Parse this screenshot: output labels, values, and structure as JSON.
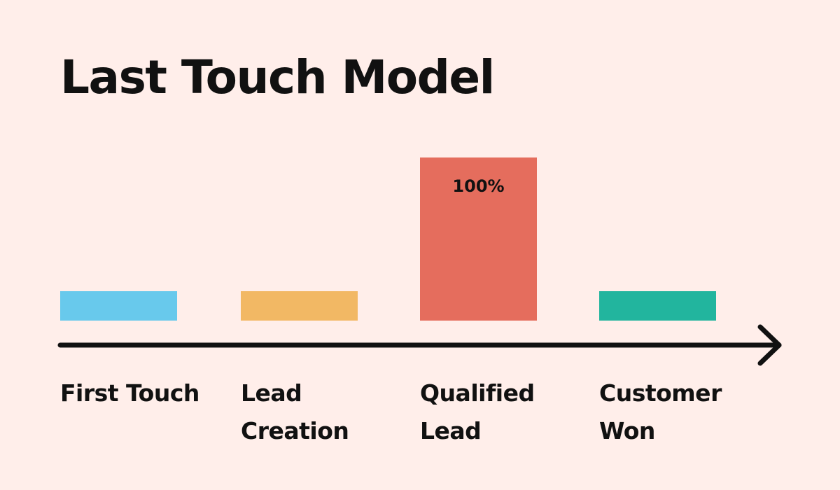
{
  "chart_data": {
    "type": "bar",
    "title": "Last Touch Model",
    "categories": [
      [
        "First Touch"
      ],
      [
        "Lead",
        "Creation"
      ],
      [
        "Qualified",
        "Lead"
      ],
      [
        "Customer",
        "Won"
      ]
    ],
    "values": [
      0,
      0,
      100,
      0
    ],
    "value_labels": [
      "",
      "",
      "100%",
      ""
    ],
    "unit": "%",
    "ylim": [
      0,
      100
    ],
    "grid": false,
    "legend": "none",
    "x_axis": "arrow",
    "colors": [
      "#68C9EC",
      "#F2B864",
      "#E56D5D",
      "#22B59E"
    ],
    "axis_color": "#111111",
    "background": "#FFEEEA"
  }
}
